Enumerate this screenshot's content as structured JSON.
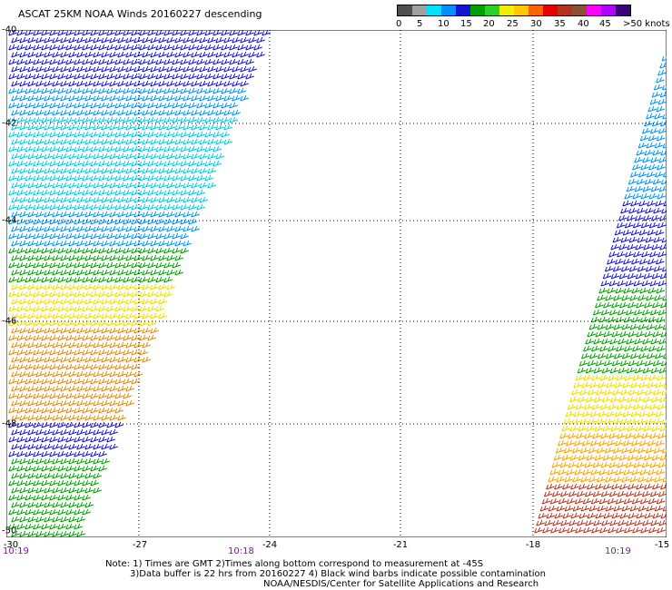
{
  "title": "ASCAT 25KM NOAA Winds 20160227 descending",
  "colorbar": {
    "colors": [
      "#505050",
      "#a0a0a0",
      "#00e0ff",
      "#0090ff",
      "#1414d2",
      "#00a000",
      "#28d228",
      "#f0f000",
      "#ffc800",
      "#ff6400",
      "#e60000",
      "#b4321e",
      "#8c5032",
      "#ff00ff",
      "#b400ff",
      "#3c0078"
    ],
    "labels": [
      "0",
      "5",
      "10",
      "15",
      "20",
      "25",
      "30",
      "35",
      "40",
      "45",
      ">50 knots"
    ]
  },
  "axes": {
    "x_ticks": [
      "-30",
      "-27",
      "-24",
      "-21",
      "-18",
      "-15"
    ],
    "y_ticks": [
      "-40",
      "-42",
      "-44",
      "-46",
      "-48",
      "-50"
    ]
  },
  "times": [
    "10:19",
    "10:18",
    "10:19"
  ],
  "notes": [
    "Note: 1) Times are GMT 2)Times along bottom correspond to measurement at -45S",
    "3)Data buffer is 22 hrs from 20160227 4) Black wind barbs indicate possible contamination",
    "NOAA/NESDIS/Center for Satellite Applications and Research"
  ]
}
